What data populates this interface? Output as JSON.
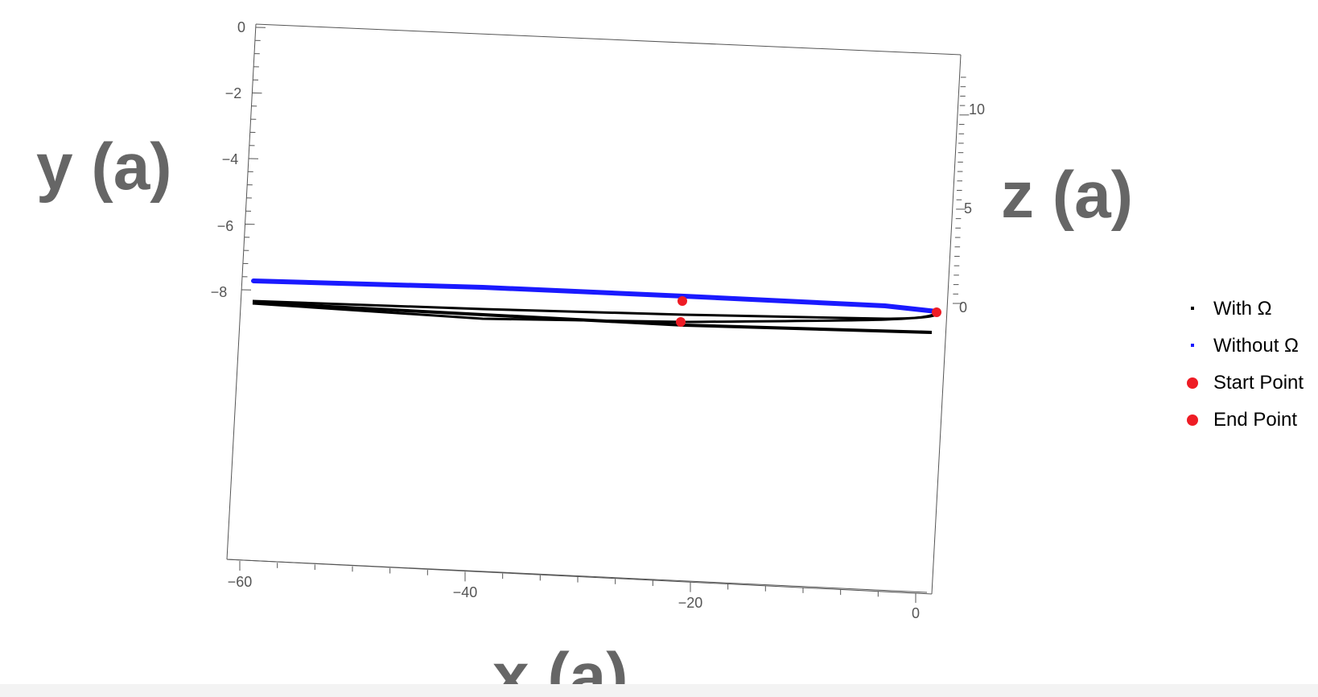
{
  "chart_data": {
    "type": "line",
    "projection": "3d",
    "xlabel": "x (a)",
    "ylabel": "y (a)",
    "zlabel": "z (a)",
    "x_ticks": [
      "−60",
      "−40",
      "−20",
      "0"
    ],
    "y_ticks": [
      "0",
      "−2",
      "−4",
      "−6",
      "−8"
    ],
    "z_ticks": [
      "10",
      "5",
      "0"
    ],
    "legend_position": "right",
    "series": [
      {
        "name": "With Ω",
        "color": "#000000",
        "points": [
          [
            -60,
            -8.2
          ],
          [
            -40,
            -8.35
          ],
          [
            -20,
            -8.5
          ],
          [
            0,
            -8.7
          ],
          [
            2,
            -8.9
          ],
          [
            0,
            -9.15
          ],
          [
            -20,
            -9.0
          ],
          [
            -40,
            -8.8
          ],
          [
            -60,
            -8.6
          ]
        ]
      },
      {
        "name": "Without Ω",
        "color": "#1a1aff",
        "points": [
          [
            -60,
            -7.6
          ],
          [
            -40,
            -7.8
          ],
          [
            -20,
            -8.05
          ],
          [
            0,
            -8.5
          ],
          [
            2,
            -8.55
          ]
        ]
      }
    ],
    "markers": [
      {
        "name": "Start Point",
        "color": "#ee1c25"
      },
      {
        "name": "End Point",
        "color": "#ee1c25"
      }
    ]
  },
  "colors": {
    "axis": "#555555",
    "axis_title": "#666666",
    "marker": "#ee1c25"
  }
}
